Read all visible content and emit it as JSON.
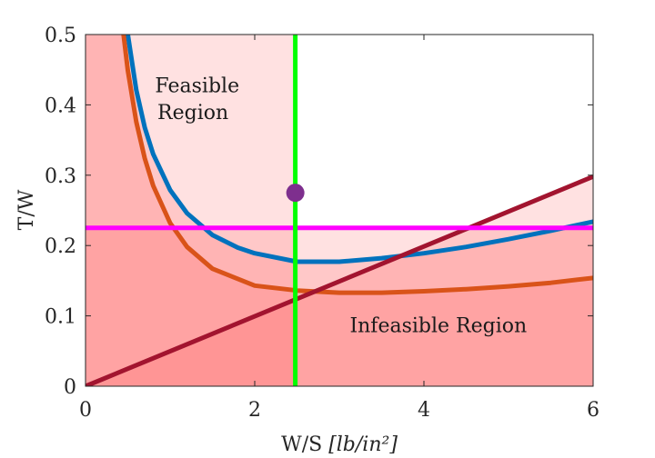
{
  "chart_data": {
    "type": "line",
    "xlabel": "W/S",
    "xlabel_units": "[lb/in²]",
    "ylabel": "T/W",
    "xlim": [
      0,
      6
    ],
    "ylim": [
      0,
      0.5
    ],
    "xticks": [
      0,
      2,
      4,
      6
    ],
    "yticks": [
      0,
      0.1,
      0.2,
      0.3,
      0.4,
      0.5
    ],
    "xtick_labels": [
      "0",
      "2",
      "4",
      "6"
    ],
    "ytick_labels": [
      "0",
      "0.1",
      "0.2",
      "0.3",
      "0.4",
      "0.5"
    ],
    "grid": false,
    "annotations": [
      {
        "text": "Feasible",
        "x": 1.32,
        "y": 0.418
      },
      {
        "text": "Region",
        "x": 1.27,
        "y": 0.38
      },
      {
        "text": "Infeasible Region",
        "x": 4.17,
        "y": 0.077
      }
    ],
    "series": [
      {
        "color": "#0072bd",
        "x": [
          0.5,
          0.6,
          0.7,
          0.8,
          1.0,
          1.2,
          1.5,
          1.8,
          2.0,
          2.5,
          3.0,
          3.5,
          4.0,
          4.5,
          5.0,
          5.5,
          6.0
        ],
        "y": [
          0.5,
          0.421,
          0.368,
          0.33,
          0.279,
          0.246,
          0.215,
          0.197,
          0.189,
          0.177,
          0.177,
          0.182,
          0.189,
          0.198,
          0.209,
          0.221,
          0.234
        ]
      },
      {
        "color": "#d95319",
        "x": [
          0.45,
          0.5,
          0.6,
          0.7,
          0.8,
          1.0,
          1.2,
          1.5,
          2.0,
          2.5,
          3.0,
          3.5,
          4.0,
          4.5,
          5.0,
          5.5,
          6.0
        ],
        "y": [
          0.5,
          0.449,
          0.376,
          0.324,
          0.285,
          0.232,
          0.198,
          0.167,
          0.143,
          0.136,
          0.133,
          0.133,
          0.135,
          0.138,
          0.142,
          0.147,
          0.154
        ]
      },
      {
        "color": "#a2142f",
        "x": [
          0,
          6
        ],
        "y": [
          0,
          0.298
        ]
      },
      {
        "color": "#ff00ff",
        "x": [
          0,
          6
        ],
        "y": [
          0.225,
          0.225
        ]
      },
      {
        "color": "#00ff00",
        "x": [
          2.48,
          2.48
        ],
        "y": [
          0,
          0.5
        ]
      }
    ],
    "design_point": {
      "x": 2.48,
      "y": 0.275,
      "color": "#7e2f8e"
    }
  }
}
